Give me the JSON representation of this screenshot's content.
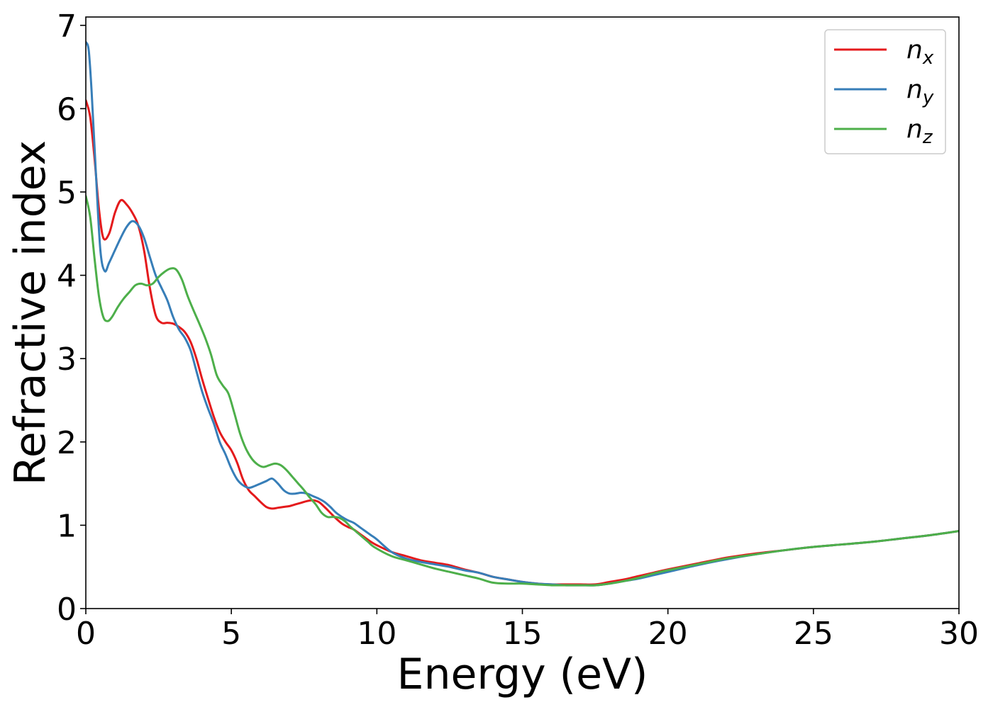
{
  "chart_data": {
    "type": "line",
    "title": "",
    "xlabel": "Energy (eV)",
    "ylabel": "Refractive index",
    "xlim": [
      0,
      30
    ],
    "ylim": [
      0,
      7.1
    ],
    "xticks": [
      0,
      5,
      10,
      15,
      20,
      25,
      30
    ],
    "yticks": [
      0,
      1,
      2,
      3,
      4,
      5,
      6,
      7
    ],
    "grid": false,
    "legend_position": "top-right",
    "series": [
      {
        "name": "n_x",
        "label_base": "n",
        "label_sub": "x",
        "color": "#e41a1c",
        "x": [
          0,
          0.15,
          0.3,
          0.45,
          0.6,
          0.8,
          1.0,
          1.2,
          1.4,
          1.6,
          1.8,
          2.0,
          2.2,
          2.4,
          2.6,
          2.8,
          3.0,
          3.2,
          3.4,
          3.6,
          3.8,
          4.0,
          4.2,
          4.4,
          4.6,
          4.8,
          5.0,
          5.2,
          5.4,
          5.6,
          5.8,
          6.0,
          6.2,
          6.4,
          6.6,
          6.8,
          7.0,
          7.2,
          7.4,
          7.6,
          7.8,
          8.0,
          8.2,
          8.4,
          8.6,
          8.8,
          9.0,
          9.2,
          9.4,
          9.6,
          9.8,
          10.0,
          10.5,
          11.0,
          11.5,
          12.0,
          12.5,
          13.0,
          13.5,
          14.0,
          14.5,
          15.0,
          15.5,
          16.0,
          16.5,
          17.0,
          17.5,
          18.0,
          18.5,
          19.0,
          19.5,
          20.0,
          21.0,
          22.0,
          23.0,
          24.0,
          25.0,
          26.0,
          27.0,
          28.0,
          29.0,
          30.0
        ],
        "y": [
          6.1,
          5.9,
          5.4,
          4.8,
          4.45,
          4.5,
          4.75,
          4.9,
          4.85,
          4.75,
          4.6,
          4.3,
          3.85,
          3.52,
          3.43,
          3.43,
          3.42,
          3.38,
          3.32,
          3.2,
          3.0,
          2.75,
          2.52,
          2.3,
          2.12,
          2.0,
          1.9,
          1.75,
          1.55,
          1.42,
          1.35,
          1.28,
          1.22,
          1.2,
          1.21,
          1.22,
          1.23,
          1.25,
          1.27,
          1.29,
          1.3,
          1.28,
          1.22,
          1.15,
          1.08,
          1.02,
          0.98,
          0.95,
          0.9,
          0.85,
          0.8,
          0.76,
          0.68,
          0.63,
          0.58,
          0.55,
          0.52,
          0.47,
          0.43,
          0.38,
          0.35,
          0.32,
          0.3,
          0.29,
          0.29,
          0.29,
          0.29,
          0.32,
          0.35,
          0.39,
          0.43,
          0.47,
          0.54,
          0.61,
          0.66,
          0.7,
          0.74,
          0.77,
          0.8,
          0.84,
          0.88,
          0.93
        ]
      },
      {
        "name": "n_y",
        "label_base": "n",
        "label_sub": "y",
        "color": "#377eb8",
        "x": [
          0,
          0.1,
          0.2,
          0.35,
          0.5,
          0.65,
          0.8,
          1.0,
          1.2,
          1.4,
          1.6,
          1.8,
          2.0,
          2.2,
          2.4,
          2.6,
          2.8,
          3.0,
          3.2,
          3.4,
          3.6,
          3.8,
          4.0,
          4.2,
          4.4,
          4.6,
          4.8,
          5.0,
          5.2,
          5.4,
          5.6,
          5.8,
          6.0,
          6.2,
          6.4,
          6.6,
          6.8,
          7.0,
          7.2,
          7.4,
          7.6,
          7.8,
          8.0,
          8.2,
          8.4,
          8.6,
          8.8,
          9.0,
          9.2,
          9.4,
          9.6,
          9.8,
          10.0,
          10.5,
          11.0,
          11.5,
          12.0,
          12.5,
          13.0,
          13.5,
          14.0,
          14.5,
          15.0,
          15.5,
          16.0,
          16.5,
          17.0,
          17.5,
          18.0,
          18.5,
          19.0,
          19.5,
          20.0,
          21.0,
          22.0,
          23.0,
          24.0,
          25.0,
          26.0,
          27.0,
          28.0,
          29.0,
          30.0
        ],
        "y": [
          6.8,
          6.7,
          6.2,
          5.2,
          4.3,
          4.05,
          4.15,
          4.3,
          4.45,
          4.58,
          4.65,
          4.6,
          4.45,
          4.22,
          4.0,
          3.85,
          3.7,
          3.5,
          3.35,
          3.25,
          3.1,
          2.85,
          2.6,
          2.4,
          2.22,
          2.0,
          1.85,
          1.68,
          1.55,
          1.48,
          1.45,
          1.47,
          1.5,
          1.53,
          1.56,
          1.5,
          1.42,
          1.38,
          1.38,
          1.39,
          1.38,
          1.35,
          1.32,
          1.28,
          1.22,
          1.15,
          1.1,
          1.06,
          1.03,
          0.98,
          0.93,
          0.88,
          0.83,
          0.68,
          0.6,
          0.56,
          0.53,
          0.5,
          0.46,
          0.43,
          0.38,
          0.35,
          0.32,
          0.3,
          0.29,
          0.28,
          0.28,
          0.28,
          0.3,
          0.33,
          0.36,
          0.4,
          0.44,
          0.52,
          0.59,
          0.65,
          0.7,
          0.74,
          0.77,
          0.8,
          0.84,
          0.88,
          0.93
        ]
      },
      {
        "name": "n_z",
        "label_base": "n",
        "label_sub": "z",
        "color": "#4daf4a",
        "x": [
          0,
          0.15,
          0.3,
          0.45,
          0.6,
          0.75,
          0.9,
          1.1,
          1.3,
          1.5,
          1.7,
          1.9,
          2.1,
          2.3,
          2.5,
          2.7,
          2.9,
          3.1,
          3.3,
          3.5,
          3.7,
          3.9,
          4.1,
          4.3,
          4.5,
          4.7,
          4.9,
          5.1,
          5.3,
          5.5,
          5.7,
          5.9,
          6.1,
          6.3,
          6.5,
          6.7,
          6.9,
          7.1,
          7.3,
          7.5,
          7.7,
          7.9,
          8.1,
          8.3,
          8.5,
          8.7,
          8.9,
          9.1,
          9.3,
          9.5,
          9.7,
          9.9,
          10.5,
          11.0,
          11.5,
          12.0,
          12.5,
          13.0,
          13.5,
          14.0,
          14.5,
          15.0,
          15.5,
          16.0,
          16.5,
          17.0,
          17.5,
          18.0,
          18.5,
          19.0,
          19.5,
          20.0,
          21.0,
          22.0,
          23.0,
          24.0,
          25.0,
          26.0,
          27.0,
          28.0,
          29.0,
          30.0
        ],
        "y": [
          4.95,
          4.7,
          4.2,
          3.75,
          3.5,
          3.45,
          3.5,
          3.62,
          3.72,
          3.8,
          3.88,
          3.9,
          3.88,
          3.9,
          3.98,
          4.04,
          4.08,
          4.07,
          3.95,
          3.75,
          3.58,
          3.42,
          3.25,
          3.05,
          2.8,
          2.68,
          2.58,
          2.35,
          2.1,
          1.92,
          1.8,
          1.73,
          1.7,
          1.72,
          1.74,
          1.72,
          1.66,
          1.58,
          1.5,
          1.42,
          1.33,
          1.25,
          1.15,
          1.1,
          1.1,
          1.09,
          1.05,
          0.98,
          0.92,
          0.86,
          0.8,
          0.74,
          0.63,
          0.58,
          0.53,
          0.48,
          0.44,
          0.4,
          0.36,
          0.31,
          0.3,
          0.3,
          0.29,
          0.28,
          0.28,
          0.28,
          0.28,
          0.3,
          0.33,
          0.37,
          0.42,
          0.46,
          0.53,
          0.6,
          0.65,
          0.7,
          0.74,
          0.77,
          0.8,
          0.84,
          0.88,
          0.93
        ]
      }
    ]
  }
}
